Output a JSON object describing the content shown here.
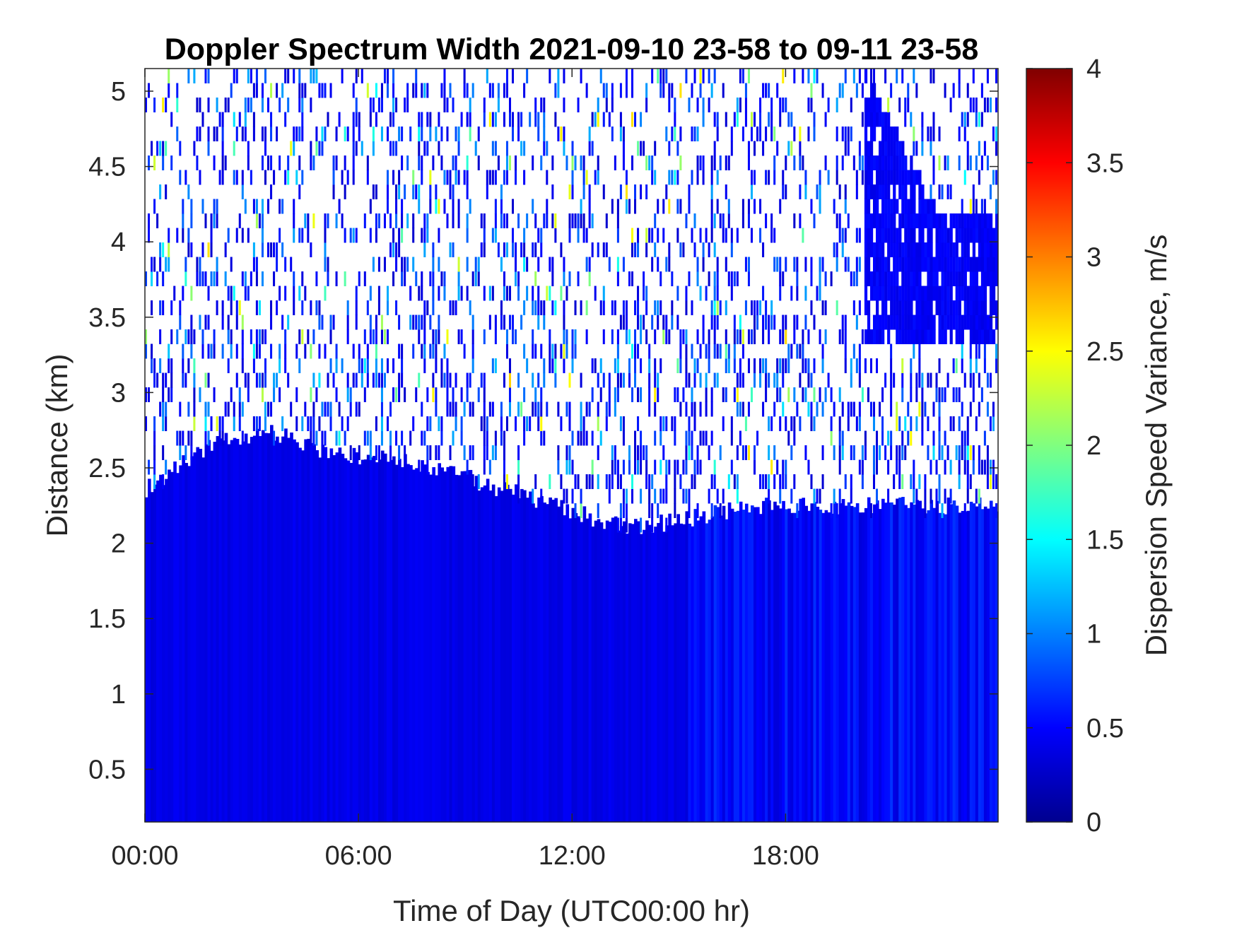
{
  "chart_data": {
    "type": "heatmap",
    "title": "Doppler Spectrum Width 2021-09-10 23-58 to 09-11 23-58",
    "xlabel": "Time of Day (UTC00:00 hr)",
    "ylabel": "Distance (km)",
    "x_ticks": [
      {
        "value": 0,
        "label": "00:00"
      },
      {
        "value": 6,
        "label": "06:00"
      },
      {
        "value": 12,
        "label": "12:00"
      },
      {
        "value": 18,
        "label": "18:00"
      }
    ],
    "y_ticks": [
      {
        "value": 0.5,
        "label": "0.5"
      },
      {
        "value": 1,
        "label": "1"
      },
      {
        "value": 1.5,
        "label": "1.5"
      },
      {
        "value": 2,
        "label": "2"
      },
      {
        "value": 2.5,
        "label": "2.5"
      },
      {
        "value": 3,
        "label": "3"
      },
      {
        "value": 3.5,
        "label": "3.5"
      },
      {
        "value": 4,
        "label": "4"
      },
      {
        "value": 4.5,
        "label": "4.5"
      },
      {
        "value": 5,
        "label": "5"
      }
    ],
    "xlim": [
      0,
      23.97
    ],
    "ylim": [
      0.15,
      5.15
    ],
    "grid": false,
    "colorbar": {
      "label": "Dispersion Speed Variance, m/s",
      "colormap": "jet",
      "clim": [
        0,
        4
      ],
      "ticks": [
        {
          "value": 0,
          "label": "0"
        },
        {
          "value": 0.5,
          "label": "0.5"
        },
        {
          "value": 1,
          "label": "1"
        },
        {
          "value": 1.5,
          "label": "1.5"
        },
        {
          "value": 2,
          "label": "2"
        },
        {
          "value": 2.5,
          "label": "2.5"
        },
        {
          "value": 3,
          "label": "3"
        },
        {
          "value": 3.5,
          "label": "3.5"
        },
        {
          "value": 4,
          "label": "4"
        }
      ]
    },
    "boundary_layer_top_km": [
      {
        "t": 0,
        "h": 2.35
      },
      {
        "t": 1.8,
        "h": 2.65
      },
      {
        "t": 3.5,
        "h": 2.75
      },
      {
        "t": 5,
        "h": 2.6
      },
      {
        "t": 7.5,
        "h": 2.55
      },
      {
        "t": 9.5,
        "h": 2.4
      },
      {
        "t": 11.5,
        "h": 2.25
      },
      {
        "t": 13.5,
        "h": 2.1
      },
      {
        "t": 15,
        "h": 2.15
      },
      {
        "t": 17,
        "h": 2.25
      },
      {
        "t": 20,
        "h": 2.25
      },
      {
        "t": 23.97,
        "h": 2.25
      }
    ],
    "cloud_layer": {
      "t_start": 20.2,
      "t_end": 23.97,
      "base_km": 3.3,
      "top_km": 5.15,
      "value_ms": 0.4
    },
    "background_value_ms": 0.35,
    "sparse_region_typical_ms": [
      0.3,
      1.2
    ]
  }
}
